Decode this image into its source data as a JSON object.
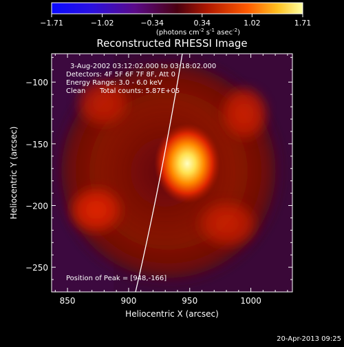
{
  "chart_data": {
    "type": "heatmap",
    "title": "Reconstructed RHESSI Image",
    "xlabel": "Heliocentric X (arcsec)",
    "ylabel": "Heliocentric Y (arcsec)",
    "xlim": [
      837,
      1034
    ],
    "ylim": [
      -270,
      -77
    ],
    "xticks": [
      850,
      900,
      950,
      1000
    ],
    "yticks": [
      -100,
      -150,
      -200,
      -250
    ],
    "colorbar": {
      "ticks": [
        "-1.71",
        "-1.02",
        "-0.34",
        "0.34",
        "1.02",
        "1.71"
      ],
      "range": [
        -1.71,
        1.71
      ],
      "label": "(photons cm",
      "label_exp1": "-2",
      "label_mid": " s",
      "label_exp2": "-1",
      "label_mid2": " asec",
      "label_exp3": "-2",
      "label_end": ")"
    },
    "annotations": {
      "time": "3-Aug-2002 03:12:02.000 to 03:18:02.000",
      "detectors": "Detectors: 4F 5F 6F 7F 8F, Att 0",
      "energy": "Energy Range: 3.0 - 6.0 keV",
      "clean": "Clean",
      "counts": "Total counts: 5.87E+05",
      "peak": "Position of Peak = [948,-166]"
    },
    "peak": [
      948,
      -166
    ],
    "footer_date": "20-Apr-2013 09:25"
  }
}
